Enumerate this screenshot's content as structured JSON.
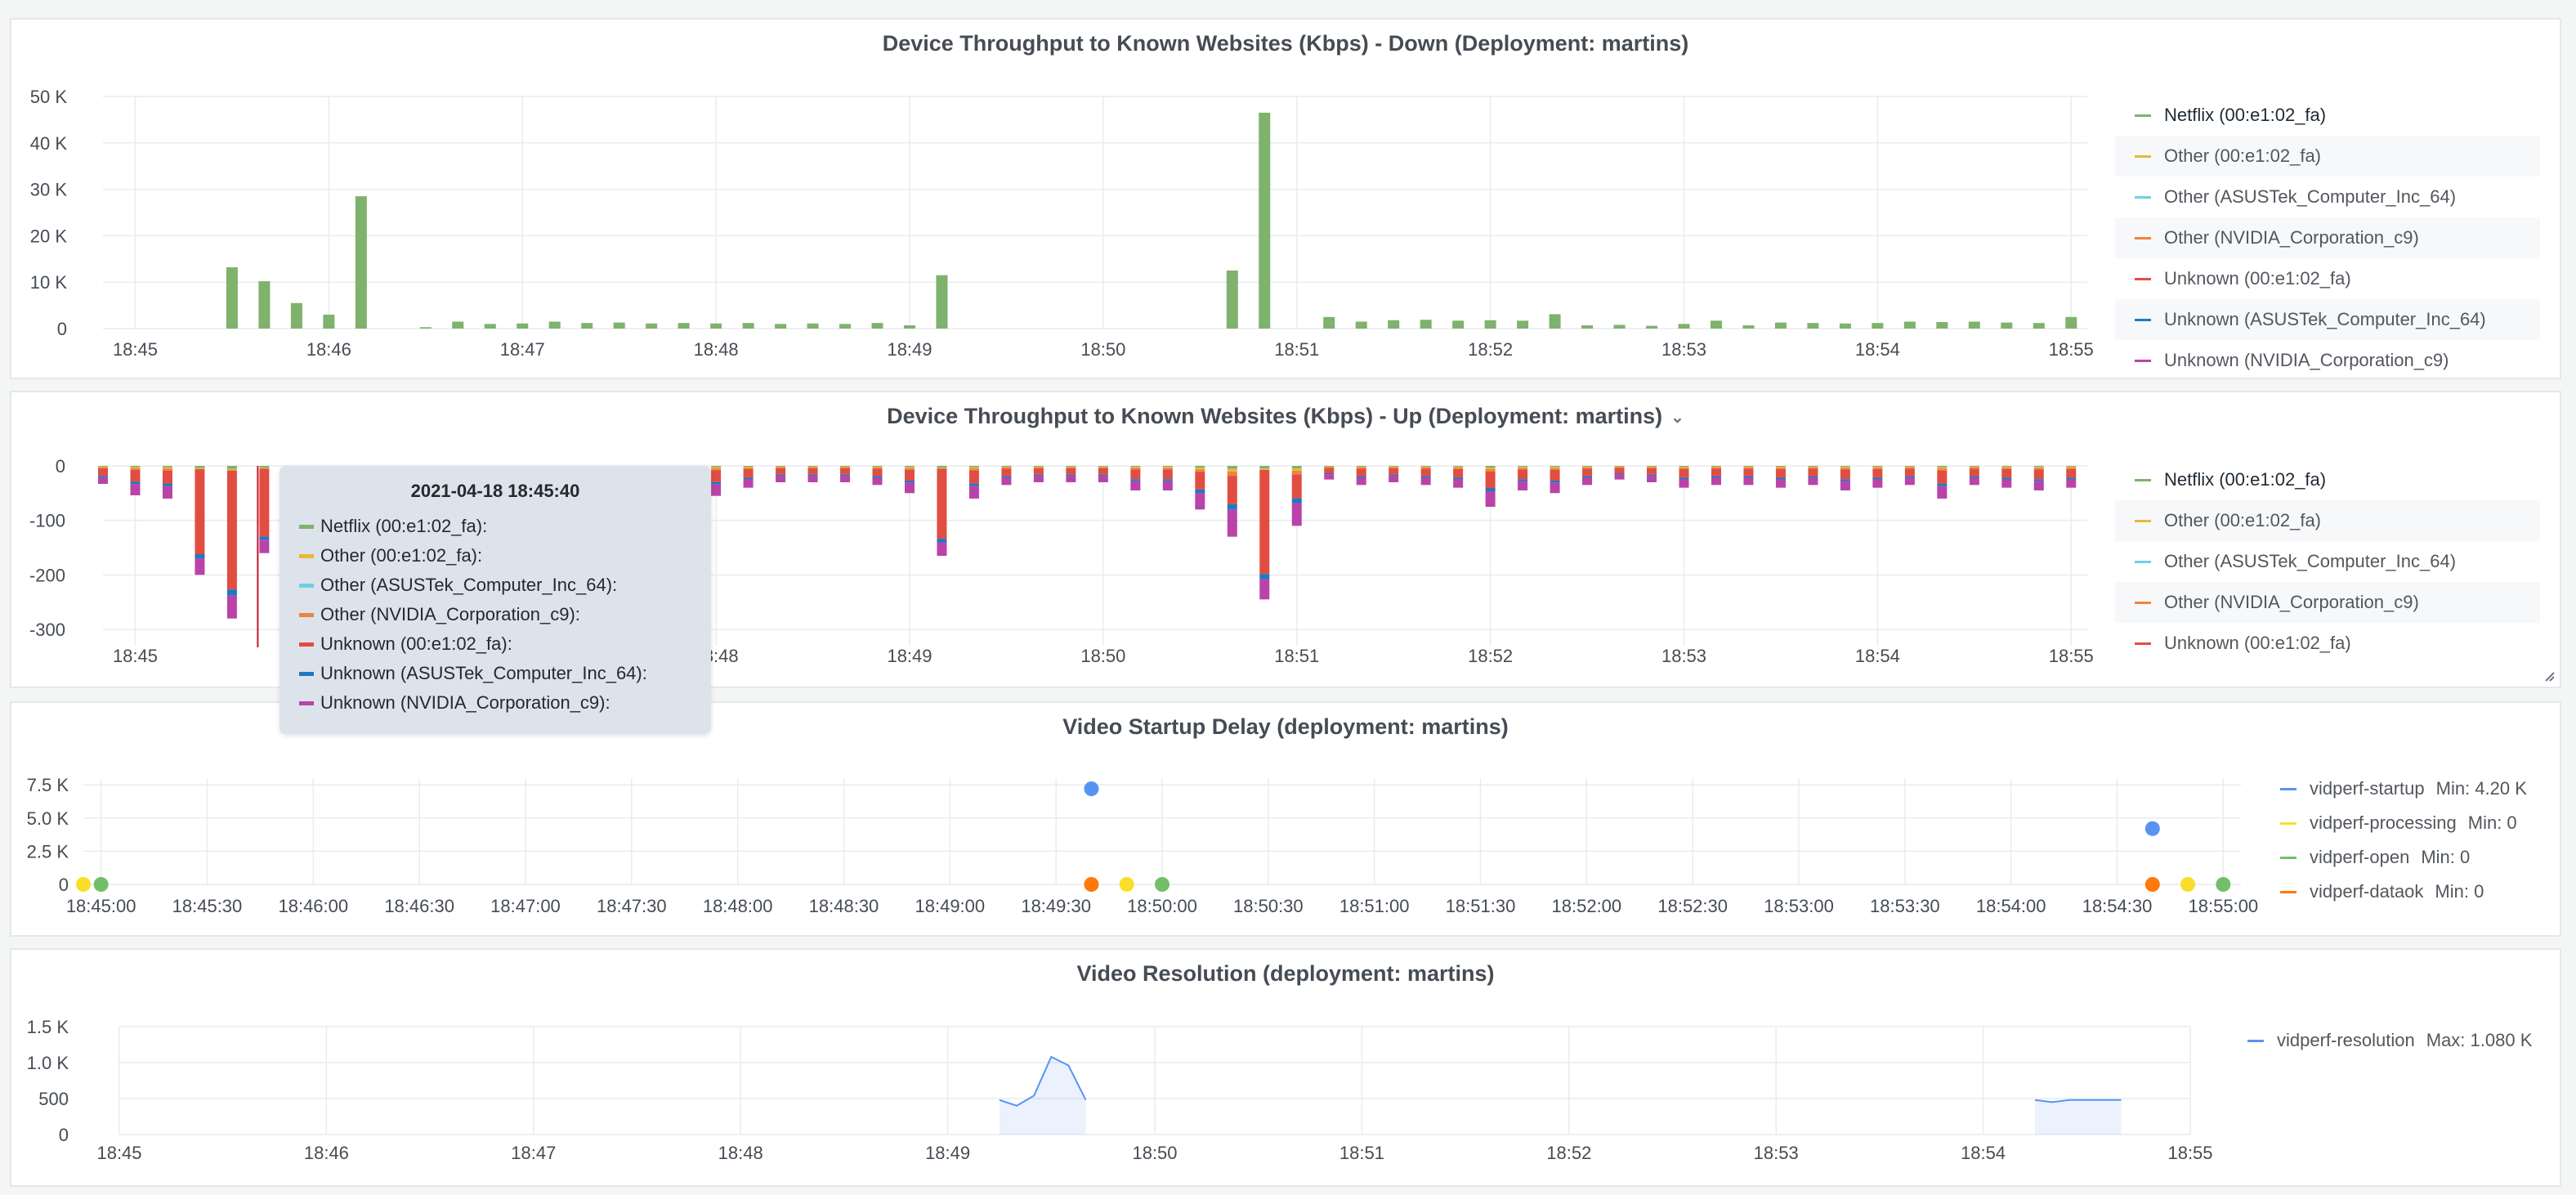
{
  "panels": {
    "down": {
      "title": "Device Throughput to Known Websites (Kbps) - Down (Deployment: martins)",
      "legend": [
        {
          "label": "Netflix (00:e1:02_fa)",
          "color": "#7eb26d"
        },
        {
          "label": "Other (00:e1:02_fa)",
          "color": "#eab839"
        },
        {
          "label": "Other (ASUSTek_Computer_Inc_64)",
          "color": "#6ed0e0"
        },
        {
          "label": "Other (NVIDIA_Corporation_c9)",
          "color": "#ef843c"
        },
        {
          "label": "Unknown (00:e1:02_fa)",
          "color": "#e24d42"
        },
        {
          "label": "Unknown (ASUSTek_Computer_Inc_64)",
          "color": "#1f78c1"
        },
        {
          "label": "Unknown (NVIDIA_Corporation_c9)",
          "color": "#ba43a9"
        }
      ]
    },
    "up": {
      "title": "Device Throughput to Known Websites (Kbps) - Up (Deployment: martins)",
      "menu_icon": "chevron-down-icon",
      "legend": [
        {
          "label": "Netflix (00:e1:02_fa)",
          "color": "#7eb26d"
        },
        {
          "label": "Other (00:e1:02_fa)",
          "color": "#eab839"
        },
        {
          "label": "Other (ASUSTek_Computer_Inc_64)",
          "color": "#6ed0e0"
        },
        {
          "label": "Other (NVIDIA_Corporation_c9)",
          "color": "#ef843c"
        },
        {
          "label": "Unknown (00:e1:02_fa)",
          "color": "#e24d42"
        }
      ]
    },
    "startup": {
      "title": "Video Startup Delay (deployment: martins)",
      "legend": [
        {
          "label": "vidperf-startup",
          "stat": "Min: 4.20 K",
          "color": "#5794f2"
        },
        {
          "label": "vidperf-processing",
          "stat": "Min: 0",
          "color": "#fade2a"
        },
        {
          "label": "vidperf-open",
          "stat": "Min: 0",
          "color": "#73bf69"
        },
        {
          "label": "vidperf-dataok",
          "stat": "Min: 0",
          "color": "#ff780a"
        }
      ]
    },
    "resolution": {
      "title": "Video Resolution (deployment: martins)",
      "legend": [
        {
          "label": "vidperf-resolution",
          "stat": "Max: 1.080 K",
          "color": "#5794f2"
        }
      ]
    }
  },
  "tooltip": {
    "time": "2021-04-18 18:45:40",
    "rows": [
      {
        "label": "Netflix (00:e1:02_fa):",
        "color": "#7eb26d"
      },
      {
        "label": "Other (00:e1:02_fa):",
        "color": "#eab839"
      },
      {
        "label": "Other (ASUSTek_Computer_Inc_64):",
        "color": "#6ed0e0"
      },
      {
        "label": "Other (NVIDIA_Corporation_c9):",
        "color": "#ef843c"
      },
      {
        "label": "Unknown (00:e1:02_fa):",
        "color": "#e24d42"
      },
      {
        "label": "Unknown (ASUSTek_Computer_Inc_64):",
        "color": "#1f78c1"
      },
      {
        "label": "Unknown (NVIDIA_Corporation_c9):",
        "color": "#ba43a9"
      }
    ]
  },
  "chart_data": [
    {
      "id": "down",
      "type": "bar",
      "title": "Device Throughput to Known Websites (Kbps) - Down (Deployment: martins)",
      "x_tick_labels": [
        "18:45",
        "18:46",
        "18:47",
        "18:48",
        "18:49",
        "18:50",
        "18:51",
        "18:52",
        "18:53",
        "18:54",
        "18:55"
      ],
      "y_tick_labels": [
        "0",
        "10 K",
        "20 K",
        "30 K",
        "40 K",
        "50 K"
      ],
      "ylim": [
        0,
        50000
      ],
      "x_range": [
        "18:44:50",
        "18:55:05"
      ],
      "grid": true,
      "legend_position": "right",
      "series": [
        {
          "name": "Netflix (00:e1:02_fa)",
          "color": "#7eb26d",
          "points": [
            [
              "18:45:30",
              13200
            ],
            [
              "18:45:40",
              10200
            ],
            [
              "18:45:50",
              5500
            ],
            [
              "18:46:00",
              3000
            ],
            [
              "18:46:10",
              28500
            ],
            [
              "18:46:30",
              300
            ],
            [
              "18:46:40",
              1500
            ],
            [
              "18:46:50",
              1000
            ],
            [
              "18:47:00",
              1100
            ],
            [
              "18:47:10",
              1500
            ],
            [
              "18:47:20",
              1200
            ],
            [
              "18:47:30",
              1300
            ],
            [
              "18:47:40",
              1100
            ],
            [
              "18:47:50",
              1200
            ],
            [
              "18:48:00",
              1100
            ],
            [
              "18:48:10",
              1200
            ],
            [
              "18:48:20",
              1000
            ],
            [
              "18:48:30",
              1100
            ],
            [
              "18:48:40",
              1000
            ],
            [
              "18:48:50",
              1200
            ],
            [
              "18:49:00",
              700
            ],
            [
              "18:49:10",
              11500
            ],
            [
              "18:50:40",
              12500
            ],
            [
              "18:50:50",
              46500
            ],
            [
              "18:51:10",
              2500
            ],
            [
              "18:51:20",
              1500
            ],
            [
              "18:51:30",
              1800
            ],
            [
              "18:51:40",
              1900
            ],
            [
              "18:51:50",
              1700
            ],
            [
              "18:52:00",
              1800
            ],
            [
              "18:52:10",
              1700
            ],
            [
              "18:52:20",
              3100
            ],
            [
              "18:52:30",
              700
            ],
            [
              "18:52:40",
              800
            ],
            [
              "18:52:50",
              600
            ],
            [
              "18:53:00",
              1000
            ],
            [
              "18:53:10",
              1700
            ],
            [
              "18:53:20",
              700
            ],
            [
              "18:53:30",
              1300
            ],
            [
              "18:53:40",
              1200
            ],
            [
              "18:53:50",
              1100
            ],
            [
              "18:54:00",
              1200
            ],
            [
              "18:54:10",
              1500
            ],
            [
              "18:54:20",
              1400
            ],
            [
              "18:54:30",
              1500
            ],
            [
              "18:54:40",
              1300
            ],
            [
              "18:54:50",
              1200
            ],
            [
              "18:55:00",
              2500
            ]
          ]
        }
      ]
    },
    {
      "id": "up",
      "type": "bar",
      "stacked": true,
      "title": "Device Throughput to Known Websites (Kbps) - Up (Deployment: martins)",
      "x_tick_labels": [
        "18:45",
        "18:46",
        "18:47",
        "18:48",
        "18:49",
        "18:50",
        "18:51",
        "18:52",
        "18:53",
        "18:54",
        "18:55"
      ],
      "y_tick_labels": [
        "0",
        "-100",
        "-200",
        "-300"
      ],
      "ylim": [
        -330,
        0
      ],
      "x_range": [
        "18:44:50",
        "18:55:05"
      ],
      "grid": true,
      "legend_position": "right",
      "approx_totals": [
        [
          "18:44:50",
          -33
        ],
        [
          "18:45:00",
          -54
        ],
        [
          "18:45:10",
          -60
        ],
        [
          "18:45:20",
          -200
        ],
        [
          "18:45:30",
          -280
        ],
        [
          "18:45:40",
          -160
        ],
        [
          "18:47:40",
          -40
        ],
        [
          "18:47:50",
          -45
        ],
        [
          "18:48:00",
          -55
        ],
        [
          "18:48:10",
          -40
        ],
        [
          "18:48:20",
          -30
        ],
        [
          "18:48:30",
          -30
        ],
        [
          "18:48:40",
          -30
        ],
        [
          "18:48:50",
          -35
        ],
        [
          "18:49:00",
          -50
        ],
        [
          "18:49:10",
          -165
        ],
        [
          "18:49:20",
          -60
        ],
        [
          "18:49:30",
          -35
        ],
        [
          "18:49:40",
          -30
        ],
        [
          "18:49:50",
          -30
        ],
        [
          "18:50:00",
          -30
        ],
        [
          "18:50:10",
          -45
        ],
        [
          "18:50:20",
          -45
        ],
        [
          "18:50:30",
          -80
        ],
        [
          "18:50:40",
          -130
        ],
        [
          "18:50:50",
          -245
        ],
        [
          "18:51:00",
          -110
        ],
        [
          "18:51:10",
          -25
        ],
        [
          "18:51:20",
          -35
        ],
        [
          "18:51:30",
          -30
        ],
        [
          "18:51:40",
          -35
        ],
        [
          "18:51:50",
          -40
        ],
        [
          "18:52:00",
          -75
        ],
        [
          "18:52:10",
          -45
        ],
        [
          "18:52:20",
          -50
        ],
        [
          "18:52:30",
          -35
        ],
        [
          "18:52:40",
          -25
        ],
        [
          "18:52:50",
          -30
        ],
        [
          "18:53:00",
          -40
        ],
        [
          "18:53:10",
          -35
        ],
        [
          "18:53:20",
          -35
        ],
        [
          "18:53:30",
          -40
        ],
        [
          "18:53:40",
          -35
        ],
        [
          "18:53:50",
          -45
        ],
        [
          "18:54:00",
          -40
        ],
        [
          "18:54:10",
          -35
        ],
        [
          "18:54:20",
          -60
        ],
        [
          "18:54:30",
          -35
        ],
        [
          "18:54:40",
          -40
        ],
        [
          "18:54:50",
          -45
        ],
        [
          "18:55:00",
          -40
        ]
      ]
    },
    {
      "id": "startup",
      "type": "scatter",
      "title": "Video Startup Delay (deployment: martins)",
      "x_tick_labels": [
        "18:45:00",
        "18:45:30",
        "18:46:00",
        "18:46:30",
        "18:47:00",
        "18:47:30",
        "18:48:00",
        "18:48:30",
        "18:49:00",
        "18:49:30",
        "18:50:00",
        "18:50:30",
        "18:51:00",
        "18:51:30",
        "18:52:00",
        "18:52:30",
        "18:53:00",
        "18:53:30",
        "18:54:00",
        "18:54:30",
        "18:55:00"
      ],
      "y_tick_labels": [
        "0",
        "2.5 K",
        "5.0 K",
        "7.5 K"
      ],
      "ylim": [
        0,
        8000
      ],
      "x_range": [
        "18:44:55",
        "18:55:05"
      ],
      "grid": true,
      "legend_position": "right",
      "series": [
        {
          "name": "vidperf-startup",
          "color": "#5794f2",
          "points": [
            [
              "18:49:40",
              7200
            ],
            [
              "18:54:40",
              4200
            ]
          ]
        },
        {
          "name": "vidperf-processing",
          "color": "#fade2a",
          "points": [
            [
              "18:44:55",
              0
            ],
            [
              "18:49:50",
              0
            ],
            [
              "18:54:50",
              0
            ]
          ]
        },
        {
          "name": "vidperf-open",
          "color": "#73bf69",
          "points": [
            [
              "18:45:00",
              0
            ],
            [
              "18:50:00",
              0
            ],
            [
              "18:55:00",
              0
            ]
          ]
        },
        {
          "name": "vidperf-dataok",
          "color": "#ff780a",
          "points": [
            [
              "18:49:40",
              0
            ],
            [
              "18:54:40",
              0
            ]
          ]
        }
      ]
    },
    {
      "id": "resolution",
      "type": "area",
      "title": "Video Resolution (deployment: martins)",
      "x_tick_labels": [
        "18:45",
        "18:46",
        "18:47",
        "18:48",
        "18:49",
        "18:50",
        "18:51",
        "18:52",
        "18:53",
        "18:54",
        "18:55"
      ],
      "y_tick_labels": [
        "0",
        "500",
        "1.0 K",
        "1.5 K"
      ],
      "ylim": [
        0,
        1500
      ],
      "x_range": [
        "18:45:00",
        "18:55:00"
      ],
      "grid": true,
      "legend_position": "right",
      "series": [
        {
          "name": "vidperf-resolution",
          "color": "#5794f2",
          "points": [
            [
              "18:49:15",
              480
            ],
            [
              "18:49:20",
              400
            ],
            [
              "18:49:25",
              540
            ],
            [
              "18:49:30",
              1080
            ],
            [
              "18:49:35",
              960
            ],
            [
              "18:49:40",
              480
            ],
            [
              "18:54:15",
              480
            ],
            [
              "18:54:20",
              450
            ],
            [
              "18:54:25",
              480
            ],
            [
              "18:54:40",
              480
            ]
          ]
        }
      ]
    }
  ]
}
